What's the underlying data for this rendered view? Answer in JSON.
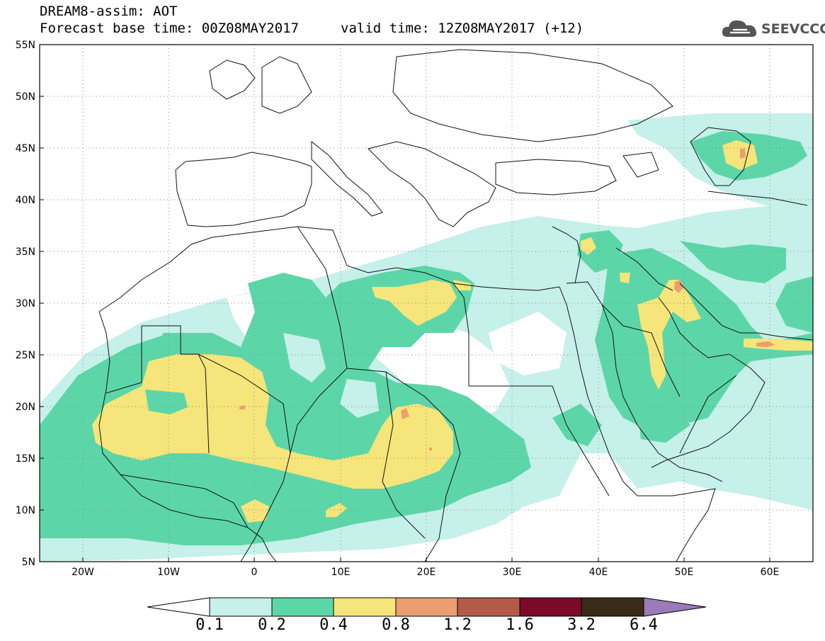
{
  "header": {
    "title": "DREAM8-assim: AOT",
    "base_time": "Forecast base time: 00Z08MAY2017",
    "valid_time": "valid time: 12Z08MAY2017 (+12)"
  },
  "logo": {
    "text": "SEEVCCC",
    "icon": "cloud-logo-icon"
  },
  "map": {
    "lon_range": [
      -25,
      65
    ],
    "lat_range": [
      5,
      55
    ],
    "lat_ticks": [
      "55N",
      "50N",
      "45N",
      "40N",
      "35N",
      "30N",
      "25N",
      "20N",
      "15N",
      "10N",
      "5N"
    ],
    "lon_ticks": [
      "20W",
      "10W",
      "0",
      "10E",
      "20E",
      "30E",
      "40E",
      "50E",
      "60E"
    ],
    "colors": {
      "c1": "#c6f0ea",
      "c2": "#5cd6a8",
      "c3": "#f5e57a",
      "c4": "#ec9e70",
      "c5": "#b45a48",
      "c6": "#7a0a28",
      "c7": "#3a2a18",
      "c8": "#9a7ab8"
    }
  },
  "colorbar": {
    "labels": [
      "0.1",
      "0.2",
      "0.4",
      "0.8",
      "1.2",
      "1.6",
      "3.2",
      "6.4"
    ],
    "colors": [
      "#c6f0ea",
      "#5cd6a8",
      "#f5e57a",
      "#ec9e70",
      "#b45a48",
      "#7a0a28",
      "#3a2a18"
    ]
  }
}
